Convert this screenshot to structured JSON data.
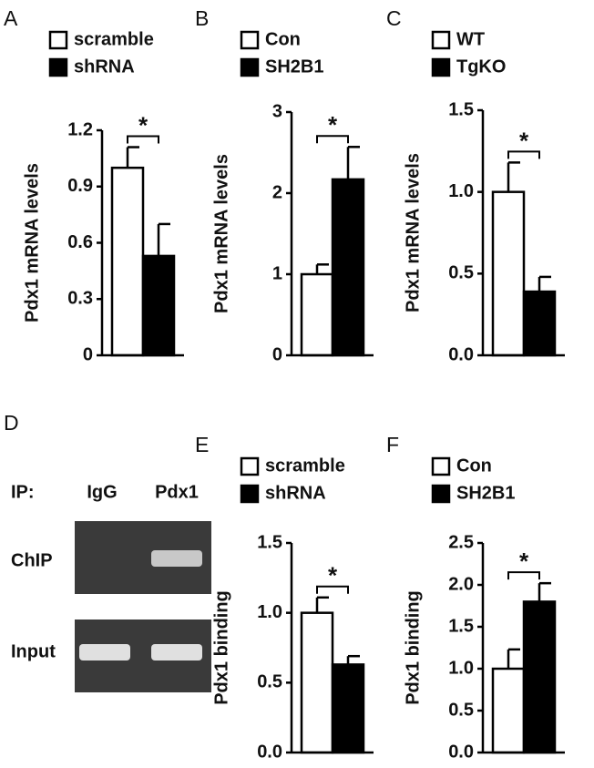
{
  "chart_data": [
    {
      "type": "bar",
      "panel": "A",
      "ylabel": "Pdx1 mRNA levels",
      "annotation": "*",
      "categories": [
        null
      ],
      "series": [
        {
          "name": "scramble",
          "color": "#ffffff",
          "values": [
            1.0
          ],
          "errors": [
            0.11
          ]
        },
        {
          "name": "shRNA",
          "color": "#000000",
          "values": [
            0.53
          ],
          "errors": [
            0.17
          ]
        }
      ],
      "ylim": [
        0,
        1.2
      ],
      "yticks": [
        0,
        0.3,
        0.6,
        0.9,
        1.2
      ]
    },
    {
      "type": "bar",
      "panel": "B",
      "ylabel": "Pdx1 mRNA levels",
      "annotation": "*",
      "categories": [
        null
      ],
      "series": [
        {
          "name": "Con",
          "color": "#ffffff",
          "values": [
            1.0
          ],
          "errors": [
            0.12
          ]
        },
        {
          "name": "SH2B1",
          "color": "#000000",
          "values": [
            2.17
          ],
          "errors": [
            0.4
          ]
        }
      ],
      "ylim": [
        0,
        3
      ],
      "yticks": [
        0,
        1,
        2,
        3
      ]
    },
    {
      "type": "bar",
      "panel": "C",
      "ylabel": "Pdx1 mRNA levels",
      "annotation": "*",
      "categories": [
        null
      ],
      "series": [
        {
          "name": "WT",
          "color": "#ffffff",
          "values": [
            1.0
          ],
          "errors": [
            0.18
          ]
        },
        {
          "name": "TgKO",
          "color": "#000000",
          "values": [
            0.39
          ],
          "errors": [
            0.09
          ]
        }
      ],
      "ylim": [
        0,
        1.5
      ],
      "yticks": [
        {
          "value": 0,
          "label": "0.0"
        },
        0.5,
        {
          "value": 1,
          "label": "1.0"
        },
        1.5
      ]
    },
    {
      "type": "bar",
      "panel": "E",
      "ylabel": "Pdx1 binding",
      "annotation": "*",
      "categories": [
        null
      ],
      "series": [
        {
          "name": "scramble",
          "color": "#ffffff",
          "values": [
            1.0
          ],
          "errors": [
            0.11
          ]
        },
        {
          "name": "shRNA",
          "color": "#000000",
          "values": [
            0.63
          ],
          "errors": [
            0.06
          ]
        }
      ],
      "ylim": [
        0,
        1.5
      ],
      "yticks": [
        {
          "value": 0,
          "label": "0.0"
        },
        0.5,
        {
          "value": 1,
          "label": "1.0"
        },
        1.5
      ]
    },
    {
      "type": "bar",
      "panel": "F",
      "ylabel": "Pdx1 binding",
      "annotation": "*",
      "categories": [
        null
      ],
      "series": [
        {
          "name": "Con",
          "color": "#ffffff",
          "values": [
            1.0
          ],
          "errors": [
            0.23
          ]
        },
        {
          "name": "SH2B1",
          "color": "#000000",
          "values": [
            1.8
          ],
          "errors": [
            0.22
          ]
        }
      ],
      "ylim": [
        0,
        2.5
      ],
      "yticks": [
        {
          "value": 0,
          "label": "0.0"
        },
        0.5,
        {
          "value": 1,
          "label": "1.0"
        },
        1.5,
        {
          "value": 2,
          "label": "2.0"
        },
        2.5
      ]
    }
  ],
  "gel": {
    "panel": "D",
    "ip_label": "IP:",
    "lanes": [
      "IgG",
      "Pdx1"
    ],
    "rows": [
      "ChIP",
      "Input"
    ]
  }
}
